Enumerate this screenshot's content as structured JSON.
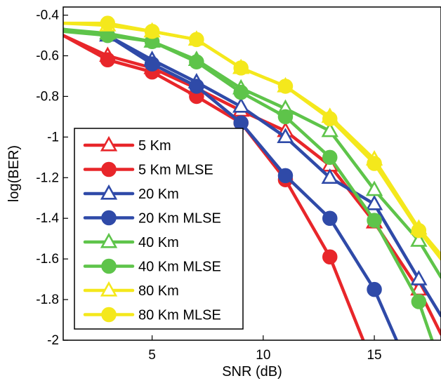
{
  "chart_data": {
    "type": "line",
    "xlabel": "SNR (dB)",
    "ylabel": "log(BER)",
    "xlim": [
      1,
      18
    ],
    "ylim": [
      -2,
      -0.36
    ],
    "xticks": [
      5,
      10,
      15
    ],
    "yticks": [
      -0.4,
      -0.6,
      -0.8,
      -1,
      -1.2,
      -1.4,
      -1.6,
      -1.8,
      -2
    ],
    "xtick_labels": [
      "5",
      "10",
      "15"
    ],
    "ytick_labels": [
      "-0.4",
      "-0.6",
      "-0.8",
      "-1",
      "-1.2",
      "-1.4",
      "-1.6",
      "-1.8",
      "-2"
    ],
    "legend_position": "lower-left",
    "series": [
      {
        "name": "5 Km",
        "color": "#e8262a",
        "marker": "triangle-open",
        "x": [
          1,
          3,
          5,
          7,
          9,
          11,
          13,
          15,
          17,
          18
        ],
        "y": [
          -0.5,
          -0.6,
          -0.66,
          -0.76,
          -0.87,
          -0.97,
          -1.14,
          -1.42,
          -1.75,
          -1.97
        ]
      },
      {
        "name": "5 Km MLSE",
        "color": "#e8262a",
        "marker": "circle-filled",
        "x": [
          1,
          3,
          5,
          7,
          9,
          11,
          13,
          14.5
        ],
        "y": [
          -0.5,
          -0.62,
          -0.68,
          -0.8,
          -0.93,
          -1.21,
          -1.59,
          -2.0
        ]
      },
      {
        "name": "20 Km",
        "color": "#2f4aa8",
        "marker": "triangle-open",
        "x": [
          1,
          3,
          5,
          7,
          9,
          11,
          13,
          15,
          17,
          18
        ],
        "y": [
          -0.47,
          -0.5,
          -0.62,
          -0.73,
          -0.85,
          -1.0,
          -1.2,
          -1.33,
          -1.7,
          -1.88
        ]
      },
      {
        "name": "20 Km MLSE",
        "color": "#2f4aa8",
        "marker": "circle-filled",
        "x": [
          1,
          3,
          5,
          7,
          9,
          11,
          13,
          15,
          16
        ],
        "y": [
          -0.47,
          -0.5,
          -0.64,
          -0.75,
          -0.93,
          -1.19,
          -1.4,
          -1.75,
          -2.0
        ]
      },
      {
        "name": "40 Km",
        "color": "#5ec44a",
        "marker": "triangle-open",
        "x": [
          1,
          3,
          5,
          7,
          9,
          11,
          13,
          15,
          17,
          18
        ],
        "y": [
          -0.47,
          -0.49,
          -0.53,
          -0.62,
          -0.76,
          -0.86,
          -0.97,
          -1.26,
          -1.51,
          -1.69
        ]
      },
      {
        "name": "40 Km MLSE",
        "color": "#5ec44a",
        "marker": "circle-filled",
        "x": [
          1,
          3,
          5,
          7,
          9,
          11,
          13,
          15,
          17,
          17.6
        ],
        "y": [
          -0.48,
          -0.5,
          -0.53,
          -0.63,
          -0.78,
          -0.9,
          -1.1,
          -1.41,
          -1.81,
          -2.0
        ]
      },
      {
        "name": "80 Km",
        "color": "#f4e81c",
        "marker": "triangle-open",
        "x": [
          1,
          3,
          5,
          7,
          9,
          11,
          13,
          15,
          17,
          18
        ],
        "y": [
          -0.44,
          -0.45,
          -0.48,
          -0.52,
          -0.66,
          -0.75,
          -0.9,
          -1.11,
          -1.45,
          -1.58
        ]
      },
      {
        "name": "80 Km MLSE",
        "color": "#f4e81c",
        "marker": "circle-filled",
        "x": [
          1,
          3,
          5,
          7,
          9,
          11,
          13,
          15,
          17,
          18
        ],
        "y": [
          -0.44,
          -0.44,
          -0.48,
          -0.52,
          -0.66,
          -0.75,
          -0.91,
          -1.13,
          -1.46,
          -1.6
        ]
      }
    ]
  }
}
